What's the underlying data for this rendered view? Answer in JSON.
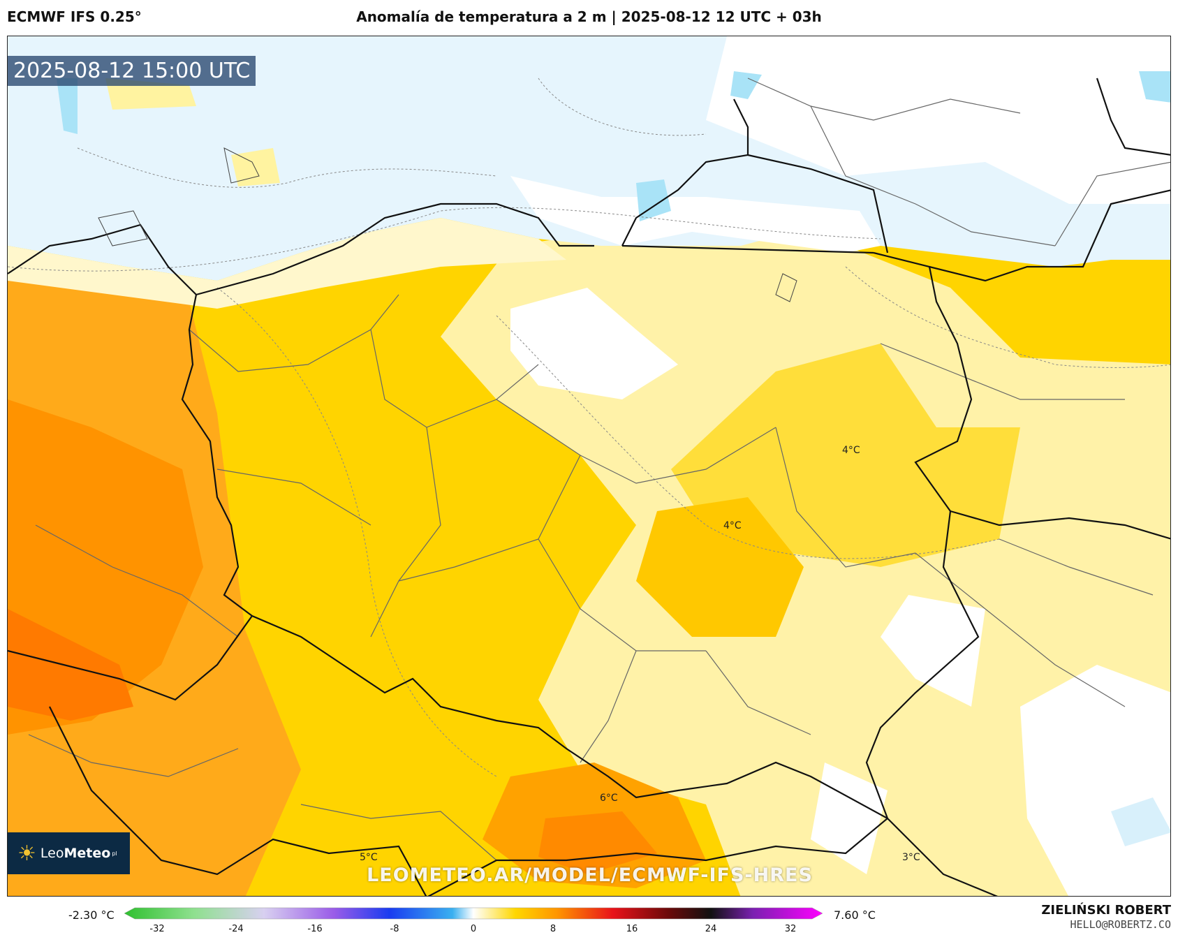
{
  "header": {
    "model": "ECMWF IFS 0.25°",
    "title": "Anomalía de temperatura a 2 m | 2025-08-12 12 UTC + 03h"
  },
  "map": {
    "valid_time": "2025-08-12 15:00 UTC",
    "watermark": "LEOMETEO.AR/MODEL/ECMWF-IFS-HRES",
    "logo": {
      "name": "LeoMeteo",
      "name_light": "Leo",
      "name_bold": "Meteo",
      "suffix": "pl",
      "icon": "sun-icon"
    },
    "labels": [
      "4°C",
      "4°C",
      "6°C",
      "5°C",
      "3°C"
    ]
  },
  "colorbar": {
    "min_label": "-2.30 °C",
    "max_label": "7.60 °C",
    "ticks": [
      "-32",
      "-24",
      "-16",
      "-8",
      "0",
      "8",
      "16",
      "24",
      "32"
    ],
    "colors": {
      "cold": "#2fc02f",
      "cool_blue": "#1a3cf0",
      "neutral": "#ffffff",
      "warm_yellow": "#ffd700",
      "warm_orange": "#ff9500",
      "hot_red": "#e8121a",
      "extreme": "#ff00ff"
    }
  },
  "credits": {
    "author": "ZIELIŃSKI ROBERT",
    "email": "HELLO@ROBERTZ.CO"
  }
}
